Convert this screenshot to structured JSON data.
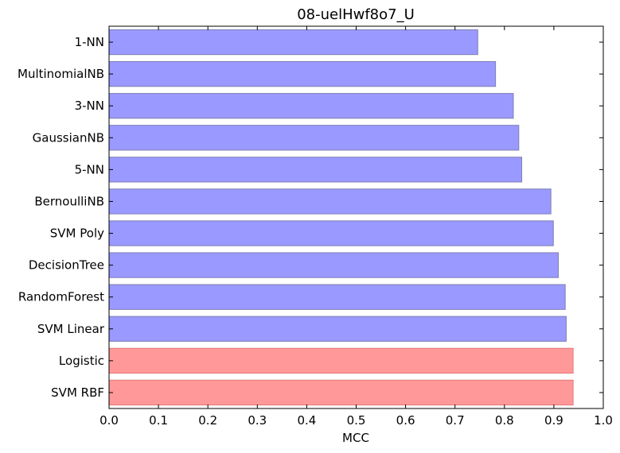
{
  "chart_data": {
    "type": "bar",
    "orientation": "horizontal",
    "title": "08-uelHwf8o7_U",
    "xlabel": "MCC",
    "ylabel": "",
    "xlim": [
      0.0,
      1.0
    ],
    "xticks": [
      "0.0",
      "0.1",
      "0.2",
      "0.3",
      "0.4",
      "0.5",
      "0.6",
      "0.7",
      "0.8",
      "0.9",
      "1.0"
    ],
    "categories": [
      "1-NN",
      "MultinomialNB",
      "3-NN",
      "GaussianNB",
      "5-NN",
      "BernoulliNB",
      "SVM Poly",
      "DecisionTree",
      "RandomForest",
      "SVM Linear",
      "Logistic",
      "SVM RBF"
    ],
    "values": [
      0.746,
      0.782,
      0.818,
      0.829,
      0.835,
      0.894,
      0.899,
      0.909,
      0.923,
      0.925,
      0.939,
      0.939
    ],
    "highlighted": [
      false,
      false,
      false,
      false,
      false,
      false,
      false,
      false,
      false,
      false,
      true,
      true
    ],
    "grid": false,
    "colors": {
      "bar": "#9999ff",
      "bar_edge": "#7f7fb3",
      "highlight": "#ff9999",
      "highlight_edge": "#e37878",
      "axis": "#000000"
    }
  }
}
